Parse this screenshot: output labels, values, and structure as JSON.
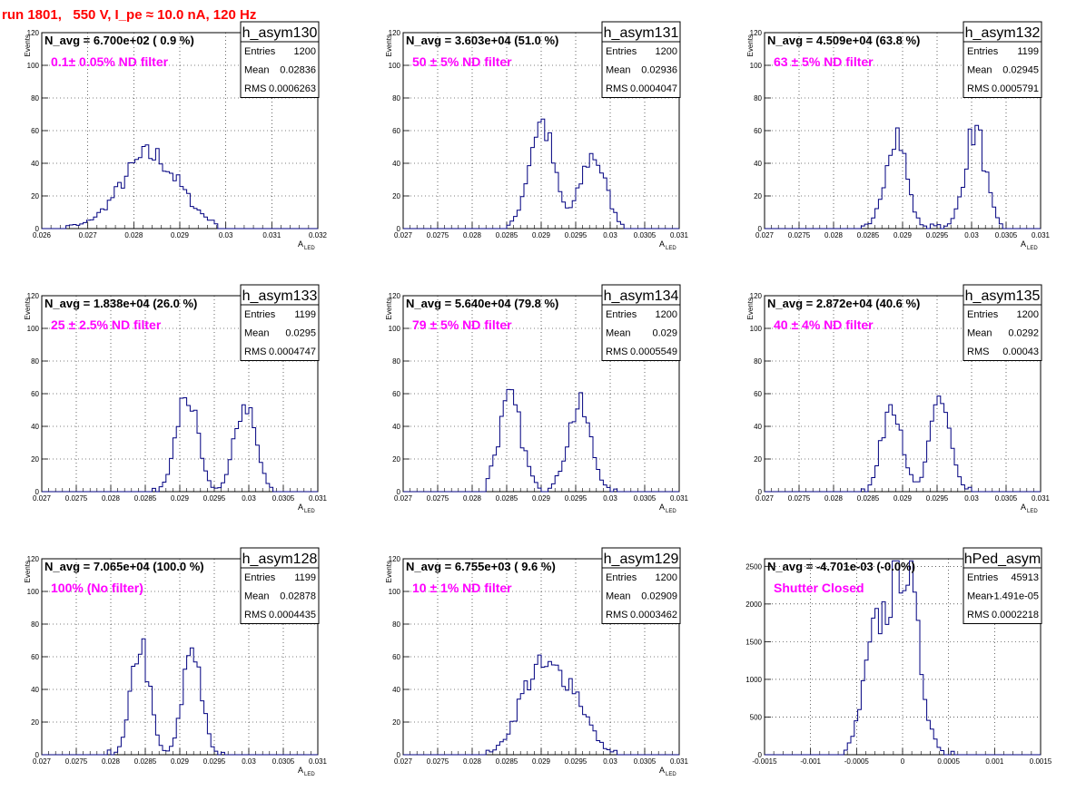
{
  "page": {
    "title": "run 1801,   550 V, I_pe ≈ 10.0 nA, 120 Hz"
  },
  "colors": {
    "title": "#ff0000",
    "annotation": "#ff00ff",
    "histogram": "#000080",
    "grid": "#000000"
  },
  "chart_data": [
    {
      "type": "histogram",
      "name": "h_asym130",
      "ylabel": "Events",
      "xlabel": "A",
      "xlabel_sub": "LED",
      "nbins": 80,
      "xlim": [
        0.026,
        0.032
      ],
      "ylim": [
        0,
        120
      ],
      "xticks": [
        "0.026",
        "0.027",
        "0.028",
        "0.029",
        "0.03",
        "0.031",
        "0.032"
      ],
      "yticks": [
        "0",
        "20",
        "40",
        "60",
        "80",
        "100",
        "120"
      ],
      "n_avg": "N_avg = 6.700e+02 ( 0.9 %)",
      "annotation": "0.1± 0.05% ND filter",
      "stats": [
        [
          "Entries",
          "1200"
        ],
        [
          "Mean",
          "0.02836"
        ],
        [
          "RMS",
          "0.0006263"
        ]
      ],
      "peaks": [
        {
          "mean": 0.02836,
          "sigma": 0.00063,
          "amp": 45
        }
      ],
      "x_range_data": [
        0.0265,
        0.0298
      ]
    },
    {
      "type": "histogram",
      "name": "h_asym131",
      "ylabel": "Events",
      "xlabel": "A",
      "xlabel_sub": "LED",
      "nbins": 80,
      "xlim": [
        0.027,
        0.031
      ],
      "ylim": [
        0,
        120
      ],
      "xticks": [
        "0.027",
        "0.0275",
        "0.028",
        "0.0285",
        "0.029",
        "0.0295",
        "0.03",
        "0.0305",
        "0.031"
      ],
      "yticks": [
        "0",
        "20",
        "40",
        "60",
        "80",
        "100",
        "120"
      ],
      "n_avg": "N_avg = 3.603e+04 (51.0 %)",
      "annotation": "50 ± 5% ND filter",
      "stats": [
        [
          "Entries",
          "1200"
        ],
        [
          "Mean",
          "0.02936"
        ],
        [
          "RMS",
          "0.0004047"
        ]
      ],
      "peaks": [
        {
          "mean": 0.029,
          "sigma": 0.00018,
          "amp": 65
        },
        {
          "mean": 0.02975,
          "sigma": 0.00018,
          "amp": 45
        }
      ],
      "x_range_data": [
        0.02845,
        0.03035
      ]
    },
    {
      "type": "histogram",
      "name": "h_asym132",
      "ylabel": "Events",
      "xlabel": "A",
      "xlabel_sub": "LED",
      "nbins": 80,
      "xlim": [
        0.027,
        0.031
      ],
      "ylim": [
        0,
        120
      ],
      "xticks": [
        "0.027",
        "0.0275",
        "0.028",
        "0.0285",
        "0.029",
        "0.0295",
        "0.03",
        "0.0305",
        "0.031"
      ],
      "yticks": [
        "0",
        "20",
        "40",
        "60",
        "80",
        "100",
        "120"
      ],
      "n_avg": "N_avg = 4.509e+04 (63.8 %)",
      "annotation": "63 ± 5% ND filter",
      "stats": [
        [
          "Entries",
          "1199"
        ],
        [
          "Mean",
          "0.02945"
        ],
        [
          "RMS",
          "0.0005791"
        ]
      ],
      "peaks": [
        {
          "mean": 0.0289,
          "sigma": 0.00015,
          "amp": 60
        },
        {
          "mean": 0.03005,
          "sigma": 0.00015,
          "amp": 60
        }
      ],
      "x_range_data": [
        0.0284,
        0.0305
      ]
    },
    {
      "type": "histogram",
      "name": "h_asym133",
      "ylabel": "Events",
      "xlabel": "A",
      "xlabel_sub": "LED",
      "nbins": 80,
      "xlim": [
        0.027,
        0.031
      ],
      "ylim": [
        0,
        120
      ],
      "xticks": [
        "0.027",
        "0.0275",
        "0.028",
        "0.0285",
        "0.029",
        "0.0295",
        "0.03",
        "0.0305",
        "0.031"
      ],
      "yticks": [
        "0",
        "20",
        "40",
        "60",
        "80",
        "100",
        "120"
      ],
      "n_avg": "N_avg = 1.838e+04 (26.0 %)",
      "annotation": "25 ± 2.5% ND filter",
      "stats": [
        [
          "Entries",
          "1199"
        ],
        [
          "Mean",
          "0.0295"
        ],
        [
          "RMS",
          "0.0004747"
        ]
      ],
      "peaks": [
        {
          "mean": 0.0291,
          "sigma": 0.00015,
          "amp": 60
        },
        {
          "mean": 0.02995,
          "sigma": 0.00015,
          "amp": 55
        }
      ],
      "x_range_data": [
        0.0286,
        0.0305
      ]
    },
    {
      "type": "histogram",
      "name": "h_asym134",
      "ylabel": "Events",
      "xlabel": "A",
      "xlabel_sub": "LED",
      "nbins": 80,
      "xlim": [
        0.027,
        0.031
      ],
      "ylim": [
        0,
        120
      ],
      "xticks": [
        "0.027",
        "0.0275",
        "0.028",
        "0.0285",
        "0.029",
        "0.0295",
        "0.03",
        "0.0305",
        "0.031"
      ],
      "yticks": [
        "0",
        "20",
        "40",
        "60",
        "80",
        "100",
        "120"
      ],
      "n_avg": "N_avg = 5.640e+04 (79.8 %)",
      "annotation": "79 ± 5% ND filter",
      "stats": [
        [
          "Entries",
          "1200"
        ],
        [
          "Mean",
          "0.029"
        ],
        [
          "RMS",
          "0.0005549"
        ]
      ],
      "peaks": [
        {
          "mean": 0.02855,
          "sigma": 0.00017,
          "amp": 55
        },
        {
          "mean": 0.02955,
          "sigma": 0.00017,
          "amp": 52
        }
      ],
      "x_range_data": [
        0.0282,
        0.0301
      ]
    },
    {
      "type": "histogram",
      "name": "h_asym135",
      "ylabel": "Events",
      "xlabel": "A",
      "xlabel_sub": "LED",
      "nbins": 80,
      "xlim": [
        0.027,
        0.031
      ],
      "ylim": [
        0,
        120
      ],
      "xticks": [
        "0.027",
        "0.0275",
        "0.028",
        "0.0285",
        "0.029",
        "0.0295",
        "0.03",
        "0.0305",
        "0.031"
      ],
      "yticks": [
        "0",
        "20",
        "40",
        "60",
        "80",
        "100",
        "120"
      ],
      "n_avg": "N_avg = 2.872e+04 (40.6 %)",
      "annotation": "40 ± 4% ND filter",
      "stats": [
        [
          "Entries",
          "1200"
        ],
        [
          "Mean",
          "0.0292"
        ],
        [
          "RMS",
          "0.00043"
        ]
      ],
      "peaks": [
        {
          "mean": 0.02885,
          "sigma": 0.00014,
          "amp": 58
        },
        {
          "mean": 0.02955,
          "sigma": 0.00014,
          "amp": 58
        }
      ],
      "x_range_data": [
        0.0284,
        0.03
      ]
    },
    {
      "type": "histogram",
      "name": "h_asym128",
      "ylabel": "Events",
      "xlabel": "A",
      "xlabel_sub": "LED",
      "nbins": 80,
      "xlim": [
        0.027,
        0.031
      ],
      "ylim": [
        0,
        120
      ],
      "xticks": [
        "0.027",
        "0.0275",
        "0.028",
        "0.0285",
        "0.029",
        "0.0295",
        "0.03",
        "0.0305",
        "0.031"
      ],
      "yticks": [
        "0",
        "20",
        "40",
        "60",
        "80",
        "100",
        "120"
      ],
      "n_avg": "N_avg = 7.065e+04 (100.0 %)",
      "annotation": "100% (No filter)",
      "stats": [
        [
          "Entries",
          "1199"
        ],
        [
          "Mean",
          "0.02878"
        ],
        [
          "RMS",
          "0.0004435"
        ]
      ],
      "peaks": [
        {
          "mean": 0.02843,
          "sigma": 0.00013,
          "amp": 68
        },
        {
          "mean": 0.02918,
          "sigma": 0.00013,
          "amp": 68
        }
      ],
      "x_range_data": [
        0.0279,
        0.0297
      ]
    },
    {
      "type": "histogram",
      "name": "h_asym129",
      "ylabel": "Events",
      "xlabel": "A",
      "xlabel_sub": "LED",
      "nbins": 80,
      "xlim": [
        0.027,
        0.031
      ],
      "ylim": [
        0,
        120
      ],
      "xticks": [
        "0.027",
        "0.0275",
        "0.028",
        "0.0285",
        "0.029",
        "0.0295",
        "0.03",
        "0.0305",
        "0.031"
      ],
      "yticks": [
        "0",
        "20",
        "40",
        "60",
        "80",
        "100",
        "120"
      ],
      "n_avg": "N_avg = 6.755e+03 ( 9.6 %)",
      "annotation": "10 ± 1% ND filter",
      "stats": [
        [
          "Entries",
          "1200"
        ],
        [
          "Mean",
          "0.02909"
        ],
        [
          "RMS",
          "0.0003462"
        ]
      ],
      "peaks": [
        {
          "mean": 0.0289,
          "sigma": 0.00025,
          "amp": 45
        },
        {
          "mean": 0.0294,
          "sigma": 0.00025,
          "amp": 40
        }
      ],
      "x_range_data": [
        0.0282,
        0.0301
      ]
    },
    {
      "type": "histogram",
      "name": "hPed_asym",
      "ylabel": "",
      "xlabel": "",
      "xlabel_sub": "",
      "nbins": 80,
      "xlim": [
        -0.0015,
        0.0015
      ],
      "ylim": [
        0,
        2600
      ],
      "xticks": [
        "-0.0015",
        "-0.001",
        "-0.0005",
        "0",
        "0.0005",
        "0.001",
        "0.0015"
      ],
      "yticks": [
        "0",
        "500",
        "1000",
        "1500",
        "2000",
        "2500"
      ],
      "n_avg": "N_avg = -4.701e-03 (-0.0%)",
      "annotation": "Shutter Closed",
      "stats": [
        [
          "Entries",
          "45913"
        ],
        [
          "Mean",
          "-1.491e-05"
        ],
        [
          "RMS",
          "0.0002218"
        ]
      ],
      "peaks": [
        {
          "mean": -0.0003,
          "sigma": 0.00013,
          "amp": 1400
        },
        {
          "mean": 2e-05,
          "sigma": 0.00015,
          "amp": 2500
        }
      ],
      "x_range_data": [
        -0.00062,
        0.00055
      ]
    }
  ]
}
